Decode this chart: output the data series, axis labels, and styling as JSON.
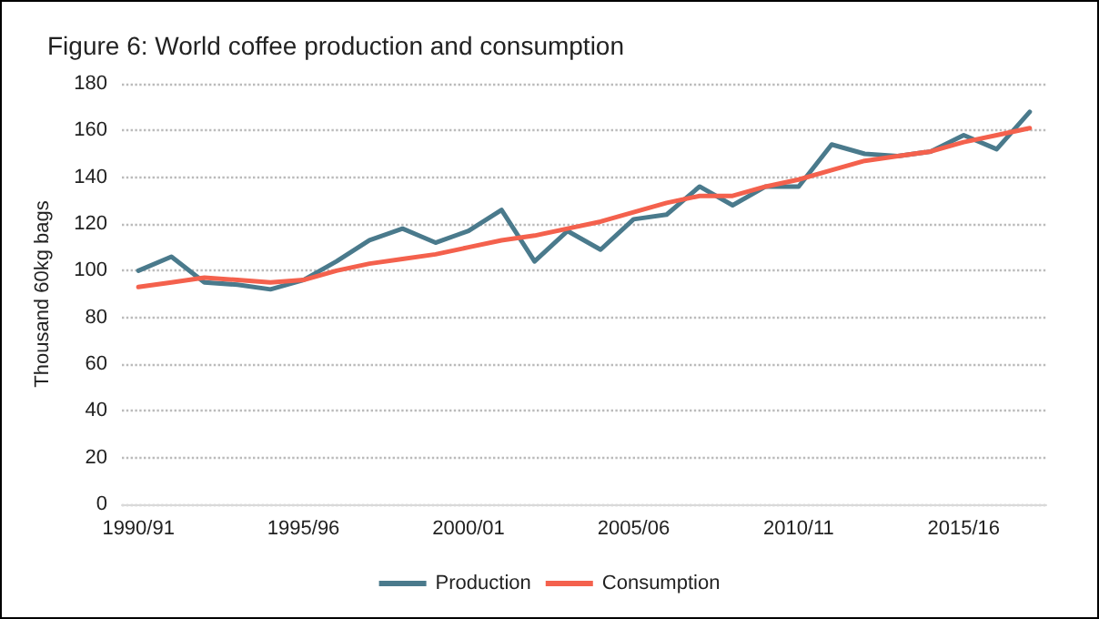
{
  "chart_data": {
    "type": "line",
    "title": "Figure 6: World coffee production and consumption",
    "ylabel": "Thousand 60kg bags",
    "categories": [
      "1990/91",
      null,
      null,
      null,
      null,
      "1995/96",
      null,
      null,
      null,
      null,
      "2000/01",
      null,
      null,
      null,
      null,
      "2005/06",
      null,
      null,
      null,
      null,
      "2010/11",
      null,
      null,
      null,
      null,
      "2015/16",
      null,
      null
    ],
    "series": [
      {
        "name": "Production",
        "color": "#4a7a8c",
        "values": [
          100,
          106,
          95,
          94,
          92,
          96,
          104,
          113,
          118,
          112,
          117,
          126,
          104,
          117,
          109,
          122,
          124,
          136,
          128,
          136,
          136,
          154,
          150,
          149,
          151,
          158,
          152,
          168
        ]
      },
      {
        "name": "Consumption",
        "color": "#f4614d",
        "values": [
          93,
          95,
          97,
          96,
          95,
          96,
          100,
          103,
          105,
          107,
          110,
          113,
          115,
          118,
          121,
          125,
          129,
          132,
          132,
          136,
          139,
          143,
          147,
          149,
          151,
          155,
          158,
          161
        ]
      }
    ],
    "ylim": [
      0,
      180
    ],
    "yticks": [
      0,
      20,
      40,
      60,
      80,
      100,
      120,
      140,
      160,
      180
    ],
    "grid": "y",
    "legend": "bottom",
    "marker": "none",
    "line_style": "solid"
  }
}
